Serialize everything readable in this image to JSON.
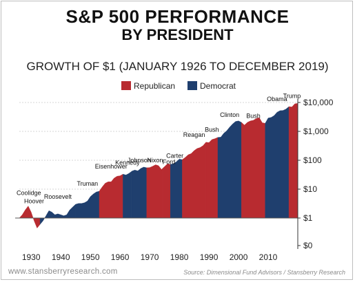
{
  "title": "S&P 500 PERFORMANCE",
  "title2": "BY PRESIDENT",
  "subtitle": "GROWTH OF $1 (JANUARY 1926 TO DECEMBER 2019)",
  "footer": {
    "website": "www.stansberryresearch.com",
    "source": "Source: Dimensional Fund Advisors / Stansberry Research"
  },
  "colors": {
    "republican": "#b82b30",
    "democrat": "#1f3f6e",
    "baseline": "#555555"
  },
  "chart_data": {
    "type": "area",
    "title": "S&P 500 PERFORMANCE BY PRESIDENT",
    "subtitle": "GROWTH OF $1 (JANUARY 1926 TO DECEMBER 2019)",
    "y_scale": "log",
    "x_range": [
      1926,
      2020
    ],
    "y_ticks": [
      {
        "value": 0,
        "label": "$0"
      },
      {
        "value": 1,
        "label": "$1"
      },
      {
        "value": 10,
        "label": "$10"
      },
      {
        "value": 100,
        "label": "$100"
      },
      {
        "value": 1000,
        "label": "$1,000"
      },
      {
        "value": 10000,
        "label": "$10,000"
      }
    ],
    "x_ticks": [
      1930,
      1940,
      1950,
      1960,
      1970,
      1980,
      1990,
      2000,
      2010
    ],
    "x_tick_labels": [
      "1930",
      "1940",
      "1950",
      "1960",
      "1970",
      "1980",
      "1990",
      "2000",
      "2010"
    ],
    "legend": [
      {
        "name": "Republican",
        "party": "R"
      },
      {
        "name": "Democrat",
        "party": "D"
      }
    ],
    "legend_position": "top",
    "presidents": [
      {
        "name": "Coolidge",
        "party": "R",
        "start": 1926,
        "end": 1929
      },
      {
        "name": "Hoover",
        "party": "R",
        "start": 1929,
        "end": 1933
      },
      {
        "name": "Roosevelt",
        "party": "D",
        "start": 1933,
        "end": 1945
      },
      {
        "name": "Truman",
        "party": "D",
        "start": 1945,
        "end": 1953
      },
      {
        "name": "Eisenhower",
        "party": "R",
        "start": 1953,
        "end": 1961
      },
      {
        "name": "Kennedy",
        "party": "D",
        "start": 1961,
        "end": 1963.9
      },
      {
        "name": "Johnson",
        "party": "D",
        "start": 1963.9,
        "end": 1969
      },
      {
        "name": "Nixon",
        "party": "R",
        "start": 1969,
        "end": 1974.6
      },
      {
        "name": "Ford",
        "party": "R",
        "start": 1974.6,
        "end": 1977
      },
      {
        "name": "Carter",
        "party": "D",
        "start": 1977,
        "end": 1981
      },
      {
        "name": "Reagan",
        "party": "R",
        "start": 1981,
        "end": 1989
      },
      {
        "name": "Bush",
        "party": "R",
        "start": 1989,
        "end": 1993
      },
      {
        "name": "Clinton",
        "party": "D",
        "start": 1993,
        "end": 2001
      },
      {
        "name": "Bush",
        "party": "R",
        "start": 2001,
        "end": 2009
      },
      {
        "name": "Obama",
        "party": "D",
        "start": 2009,
        "end": 2017
      },
      {
        "name": "Trump",
        "party": "R",
        "start": 2017,
        "end": 2020
      }
    ],
    "values": [
      [
        1926,
        1.0
      ],
      [
        1927,
        1.3
      ],
      [
        1928,
        1.9
      ],
      [
        1929,
        2.6
      ],
      [
        1930,
        1.6
      ],
      [
        1931,
        0.8
      ],
      [
        1932,
        0.45
      ],
      [
        1933,
        0.6
      ],
      [
        1934,
        0.8
      ],
      [
        1935,
        1.2
      ],
      [
        1936,
        1.8
      ],
      [
        1937,
        1.6
      ],
      [
        1938,
        1.3
      ],
      [
        1939,
        1.4
      ],
      [
        1940,
        1.3
      ],
      [
        1941,
        1.2
      ],
      [
        1942,
        1.3
      ],
      [
        1943,
        1.9
      ],
      [
        1944,
        2.4
      ],
      [
        1945,
        3.0
      ],
      [
        1946,
        3.2
      ],
      [
        1947,
        3.2
      ],
      [
        1948,
        3.4
      ],
      [
        1949,
        3.9
      ],
      [
        1950,
        5.5
      ],
      [
        1951,
        6.8
      ],
      [
        1952,
        8.0
      ],
      [
        1953,
        8.5
      ],
      [
        1954,
        12
      ],
      [
        1955,
        16
      ],
      [
        1956,
        18
      ],
      [
        1957,
        18
      ],
      [
        1958,
        24
      ],
      [
        1959,
        28
      ],
      [
        1960,
        29
      ],
      [
        1961,
        33
      ],
      [
        1962,
        31
      ],
      [
        1963,
        35
      ],
      [
        1964,
        42
      ],
      [
        1965,
        46
      ],
      [
        1966,
        43
      ],
      [
        1967,
        52
      ],
      [
        1968,
        58
      ],
      [
        1969,
        55
      ],
      [
        1970,
        56
      ],
      [
        1971,
        62
      ],
      [
        1972,
        70
      ],
      [
        1973,
        65
      ],
      [
        1974,
        48
      ],
      [
        1975,
        60
      ],
      [
        1976,
        75
      ],
      [
        1977,
        72
      ],
      [
        1978,
        76
      ],
      [
        1979,
        88
      ],
      [
        1980,
        110
      ],
      [
        1981,
        105
      ],
      [
        1982,
        125
      ],
      [
        1983,
        155
      ],
      [
        1984,
        170
      ],
      [
        1985,
        215
      ],
      [
        1986,
        255
      ],
      [
        1987,
        275
      ],
      [
        1988,
        320
      ],
      [
        1989,
        420
      ],
      [
        1990,
        410
      ],
      [
        1991,
        520
      ],
      [
        1992,
        560
      ],
      [
        1993,
        620
      ],
      [
        1994,
        630
      ],
      [
        1995,
        860
      ],
      [
        1996,
        1050
      ],
      [
        1997,
        1400
      ],
      [
        1998,
        1800
      ],
      [
        1999,
        2200
      ],
      [
        2000,
        2300
      ],
      [
        2001,
        2050
      ],
      [
        2002,
        1650
      ],
      [
        2003,
        2050
      ],
      [
        2004,
        2300
      ],
      [
        2005,
        2420
      ],
      [
        2006,
        2800
      ],
      [
        2007,
        3000
      ],
      [
        2008,
        2000
      ],
      [
        2009,
        1900
      ],
      [
        2010,
        2900
      ],
      [
        2011,
        3050
      ],
      [
        2012,
        3500
      ],
      [
        2013,
        4600
      ],
      [
        2014,
        5200
      ],
      [
        2015,
        5300
      ],
      [
        2016,
        5900
      ],
      [
        2017,
        7200
      ],
      [
        2018,
        7000
      ],
      [
        2019,
        9000
      ],
      [
        2020,
        9300
      ]
    ]
  }
}
